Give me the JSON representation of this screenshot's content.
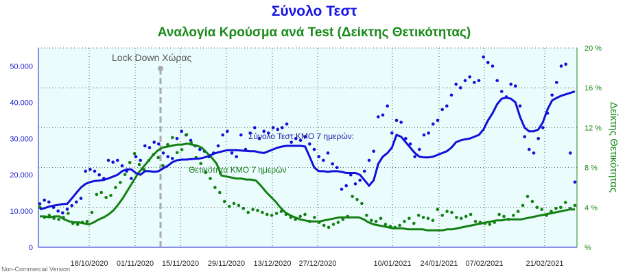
{
  "chart_data": {
    "type": "line",
    "title": "Σύνολο Τεστ",
    "subtitle": "Αναλογία Κρούσμα ανά Test (Δείκτης Θετικότητας)",
    "y_left_ticks": [
      "0",
      "10.000",
      "20.000",
      "30.000",
      "40.000",
      "50.000"
    ],
    "y_right_ticks": [
      "%",
      "4 %",
      "8 %",
      "12 %",
      "16 %",
      "20 %"
    ],
    "y_right_label": "Δείκτης Θετικότητας",
    "x_ticks": [
      "18/10/2020",
      "01/11/2020",
      "15/11/2020",
      "29/11/2020",
      "13/12/2020",
      "27/12/2020",
      "10/01/2021",
      "24/01/2021",
      "07/02/2021",
      "21/02/2021"
    ],
    "ylim_left": [
      0,
      55000
    ],
    "ylim_right": [
      0,
      20
    ],
    "grid": true,
    "series": [
      {
        "name": "Σύνολο Τεστ ΚΜΟ 7 ημερών:",
        "axis": "left",
        "color": "#1010d8",
        "values": [
          10500,
          10800,
          11200,
          11500,
          11700,
          11900,
          12000,
          13500,
          15000,
          16500,
          17500,
          18000,
          18300,
          18400,
          18600,
          19000,
          19500,
          20000,
          21000,
          21500,
          21500,
          20500,
          20000,
          21000,
          21000,
          20800,
          21000,
          21800,
          22500,
          23500,
          24000,
          24200,
          24200,
          24300,
          24400,
          24500,
          24800,
          25200,
          25800,
          26200,
          26500,
          26800,
          26800,
          26800,
          26700,
          26600,
          26500,
          26500,
          26200,
          26000,
          26500,
          27000,
          27500,
          27800,
          28000,
          28000,
          28000,
          28000,
          27800,
          25000,
          22000,
          21000,
          21000,
          20800,
          21000,
          21000,
          20800,
          20500,
          20500,
          20500,
          20000,
          18500,
          17000,
          18500,
          23000,
          25000,
          26000,
          27500,
          31000,
          30500,
          29000,
          27500,
          26000,
          25000,
          24800,
          24800,
          25000,
          25500,
          26000,
          26500,
          27500,
          29000,
          29500,
          29800,
          30000,
          30500,
          31000,
          32500,
          35000,
          37000,
          39500,
          41000,
          41300,
          41000,
          40000,
          36000,
          33000,
          32000,
          32000,
          32500,
          34500,
          38000,
          40500,
          41200,
          41800,
          42200,
          42600,
          43000
        ]
      },
      {
        "name": "Θετικότητα ΚΜΟ 7 ημερών",
        "axis": "right",
        "color": "#148014",
        "values": [
          3.1,
          3.1,
          3.0,
          3.1,
          3.1,
          2.8,
          2.6,
          2.5,
          2.5,
          2.4,
          2.3,
          2.5,
          2.8,
          3.0,
          3.3,
          3.7,
          4.3,
          5.0,
          5.8,
          6.6,
          7.4,
          8.0,
          8.6,
          9.2,
          9.7,
          10.0,
          10.1,
          10.2,
          10.3,
          10.3,
          10.4,
          10.3,
          10.2,
          10.0,
          9.5,
          9.0,
          8.4,
          7.2,
          7.1,
          7.0,
          6.9,
          6.9,
          6.8,
          6.8,
          6.7,
          6.2,
          5.6,
          5.1,
          4.6,
          4.0,
          3.5,
          3.2,
          3.0,
          2.8,
          2.7,
          2.6,
          2.6,
          2.6,
          2.7,
          2.8,
          2.9,
          3.0,
          3.0,
          3.0,
          3.0,
          3.0,
          2.8,
          2.5,
          2.3,
          2.2,
          2.1,
          2.0,
          1.9,
          1.9,
          1.9,
          1.8,
          1.8,
          1.8,
          1.8,
          1.7,
          1.7,
          1.7,
          1.7,
          1.8,
          1.8,
          1.9,
          2.0,
          2.1,
          2.2,
          2.3,
          2.4,
          2.5,
          2.6,
          2.7,
          2.7,
          2.8,
          2.8,
          2.8,
          2.8,
          2.9,
          3.0,
          3.1,
          3.2,
          3.3,
          3.4,
          3.5,
          3.6,
          3.7,
          3.8,
          3.8
        ]
      }
    ],
    "scatter_blue": [
      12000,
      13000,
      12500,
      11000,
      10000,
      9500,
      10500,
      11500,
      12500,
      13500,
      21000,
      21500,
      21000,
      20000,
      19000,
      24000,
      23500,
      24000,
      22500,
      21000,
      19000,
      25000,
      24000,
      28000,
      27500,
      29000,
      28500,
      26000,
      25000,
      24500,
      30000,
      32000,
      31000,
      29500,
      28000,
      27000,
      26500,
      25000,
      26000,
      28000,
      31000,
      32000,
      26000,
      25000,
      31000,
      27000,
      31500,
      33000,
      30000,
      32000,
      31500,
      33000,
      32500,
      33000,
      34000,
      29000,
      30000,
      29500,
      30500,
      28500,
      27000,
      25000,
      24000,
      26000,
      23000,
      22000,
      16000,
      17000,
      20000,
      17500,
      18500,
      21000,
      24000,
      26500,
      36000,
      36500,
      39000,
      31500,
      35000,
      34500,
      30000,
      28500,
      25000,
      27000,
      31000,
      31500,
      34000,
      35000,
      38000,
      39000,
      42000,
      45000,
      44000,
      46000,
      47000,
      45500,
      46000,
      52500,
      51000,
      50000,
      46000,
      43000,
      41500,
      45000,
      44500,
      39000,
      30500,
      27000,
      26000,
      30000,
      33000,
      37000,
      42000,
      45500,
      50000,
      50500,
      26000,
      18000
    ],
    "scatter_green": [
      4.0,
      3.0,
      3.2,
      2.9,
      2.8,
      3.0,
      3.4,
      2.4,
      2.3,
      2.5,
      2.6,
      3.5,
      5.3,
      5.5,
      5.0,
      5.2,
      6.0,
      6.5,
      7.3,
      8.5,
      9.4,
      8.3,
      7.8,
      8.7,
      9.3,
      9.0,
      8.2,
      10.3,
      11.0,
      9.5,
      9.8,
      11.3,
      10.5,
      9.0,
      8.4,
      7.5,
      6.9,
      6.0,
      5.5,
      4.6,
      4.1,
      4.4,
      4.2,
      3.9,
      3.5,
      3.8,
      3.7,
      3.5,
      3.3,
      3.2,
      3.4,
      3.6,
      3.3,
      3.0,
      2.8,
      3.1,
      3.3,
      2.6,
      3.0,
      2.5,
      2.2,
      2.0,
      2.3,
      2.5,
      2.8,
      3.1,
      5.1,
      4.8,
      4.4,
      3.2,
      2.7,
      2.6,
      2.9,
      2.3,
      2.1,
      2.0,
      2.2,
      2.6,
      2.9,
      2.4,
      3.2,
      3.0,
      2.9,
      2.7,
      3.8,
      3.2,
      3.6,
      3.5,
      3.0,
      2.9,
      3.1,
      3.3,
      2.6,
      2.5,
      2.4,
      2.3,
      2.5,
      3.3,
      3.1,
      2.8,
      3.2,
      3.6,
      4.2,
      5.1,
      4.6,
      4.0,
      3.8,
      3.2,
      3.6,
      3.9,
      4.0,
      4.5,
      3.9,
      4.2
    ]
  },
  "annotations": {
    "lockdown_label": "Lock Down Χώρας",
    "series_blue_label": "Σύνολο Τεστ ΚΜΟ 7 ημερών:",
    "series_green_label": "Θετικότητα ΚΜΟ 7 ημερών"
  },
  "colors": {
    "plot_bg": "#eafcfc",
    "blue": "#1010d8",
    "green": "#148014",
    "lockdown": "#aaaaaa"
  },
  "footer": {
    "credit": "Non-Commercial Version"
  }
}
